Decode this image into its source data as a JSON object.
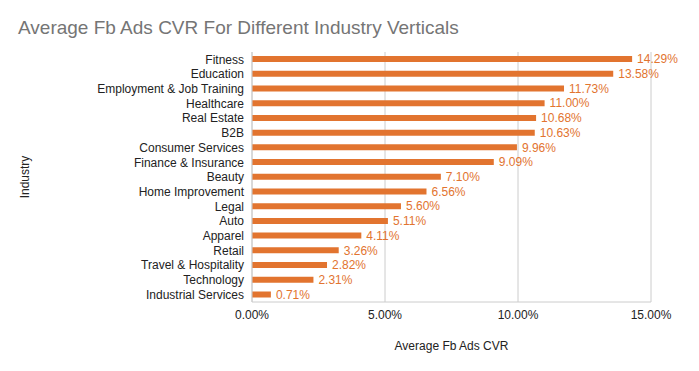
{
  "chart_data": {
    "type": "bar",
    "title": "Average Fb Ads CVR For Different Industry Verticals",
    "orientation": "horizontal",
    "x_label": "Average Fb Ads CVR",
    "y_label": "Industry",
    "categories": [
      "Fitness",
      "Education",
      "Employment & Job Training",
      "Healthcare",
      "Real Estate",
      "B2B",
      "Consumer Services",
      "Finance & Insurance",
      "Beauty",
      "Home Improvement",
      "Legal",
      "Auto",
      "Apparel",
      "Retail",
      "Travel & Hospitality",
      "Technology",
      "Industrial Services"
    ],
    "values": [
      14.29,
      13.58,
      11.73,
      11.0,
      10.68,
      10.63,
      9.96,
      9.09,
      7.1,
      6.56,
      5.6,
      5.11,
      4.11,
      3.26,
      2.82,
      2.31,
      0.71
    ],
    "value_labels": [
      "14.29%",
      "13.58%",
      "11.73%",
      "11.00%",
      "10.68%",
      "10.63%",
      "9.96%",
      "9.09%",
      "7.10%",
      "6.56%",
      "5.60%",
      "5.11%",
      "4.11%",
      "3.26%",
      "2.82%",
      "2.31%",
      "0.71%"
    ],
    "color": "#e2742f",
    "xlim": [
      0,
      15
    ],
    "xticks": [
      {
        "value": 0,
        "label": "0.00%"
      },
      {
        "value": 5,
        "label": "5.00%"
      },
      {
        "value": 10,
        "label": "10.00%"
      },
      {
        "value": 15,
        "label": "15.00%"
      }
    ],
    "grid": true,
    "data_labels": true
  }
}
